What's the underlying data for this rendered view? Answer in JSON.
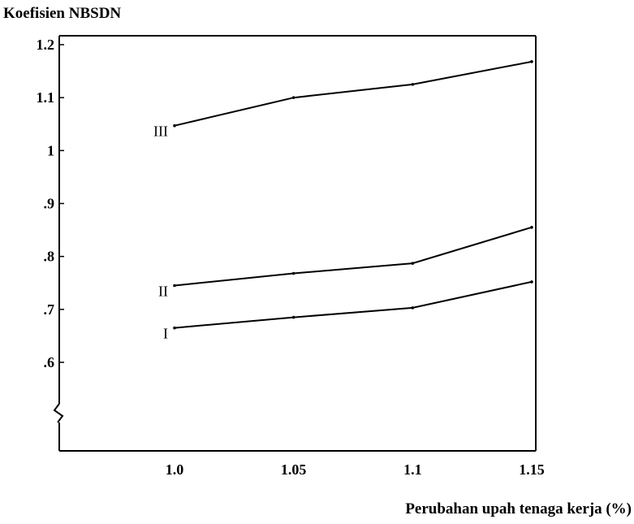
{
  "chart_data": {
    "type": "line",
    "ylabel": "Koefisien NBSDN",
    "xlabel": "Perubahan upah tenaga kerja (%)",
    "x": [
      1.0,
      1.05,
      1.1,
      1.15
    ],
    "x_tick_labels": [
      "1.0",
      "1.05",
      "1.1",
      "1.15"
    ],
    "y_ticks": [
      0.6,
      0.7,
      0.8,
      0.9,
      1.0,
      1.1,
      1.2
    ],
    "y_tick_labels": [
      ".6",
      ".7",
      ".8",
      ".9",
      "1",
      "1.1",
      "1.2"
    ],
    "xlim": [
      0.95,
      1.15
    ],
    "ylim": [
      0.6,
      1.2
    ],
    "axis_break": true,
    "grid": false,
    "series": [
      {
        "name": "I",
        "values": [
          0.665,
          0.685,
          0.703,
          0.752
        ]
      },
      {
        "name": "II",
        "values": [
          0.745,
          0.768,
          0.787,
          0.855
        ]
      },
      {
        "name": "III",
        "values": [
          1.047,
          1.1,
          1.125,
          1.168
        ]
      }
    ]
  },
  "colors": {
    "line": "#000000",
    "axis": "#000000"
  }
}
